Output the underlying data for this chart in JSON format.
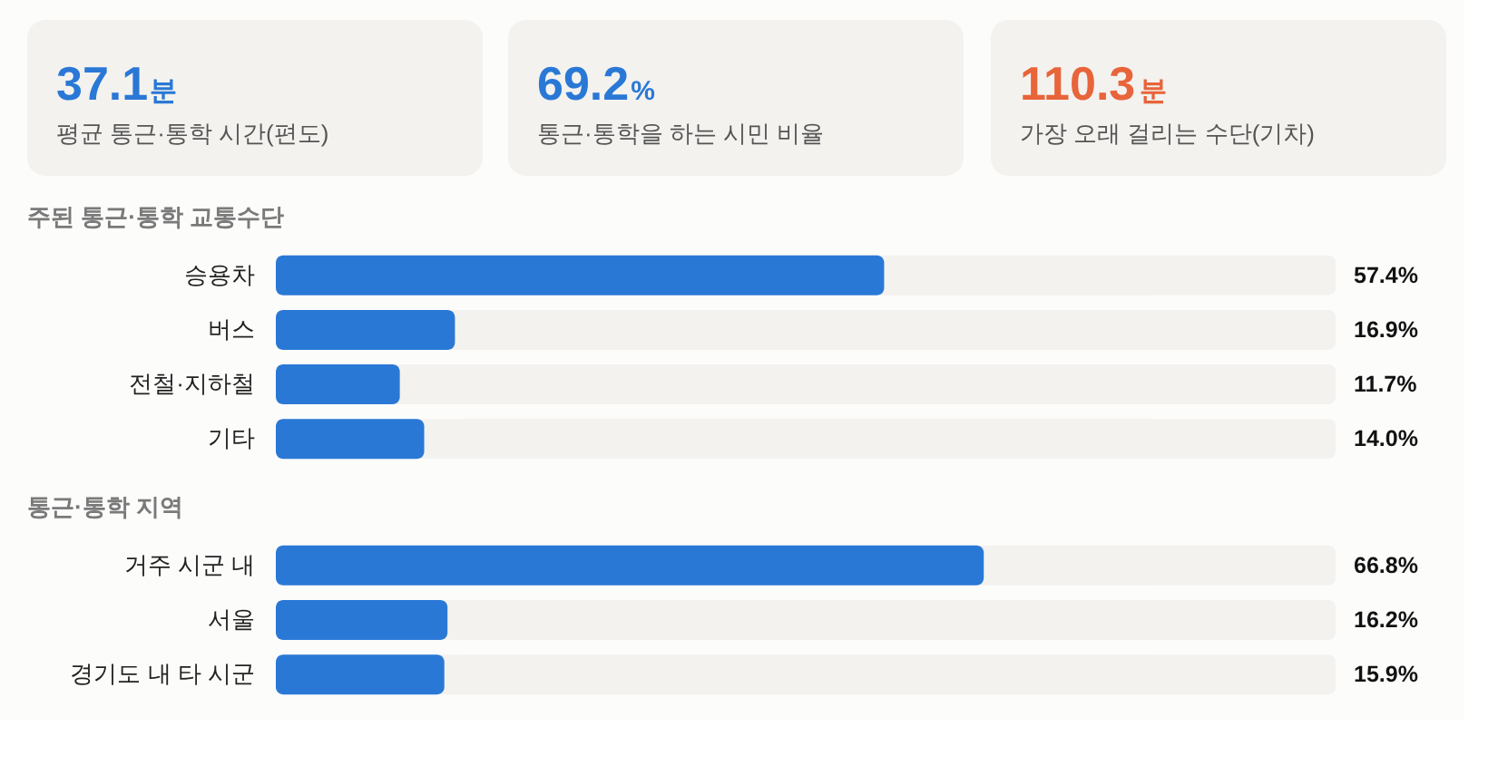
{
  "chart_data": [
    {
      "type": "other",
      "annotations": [
        "37.1분",
        "평균 통근·통학 시간(편도)",
        "69.2%",
        "통근·통학을 하는 시민 비율",
        "110.3분",
        "가장 오래 걸리는 수단(기차)"
      ],
      "colors": [
        "#2a78d6",
        "#2a78d6",
        "#e8643a"
      ]
    },
    {
      "type": "bar",
      "orientation": "horizontal",
      "title": "주된 통근·통학 교통수단",
      "categories": [
        "승용차",
        "버스",
        "전철·지하철",
        "기타"
      ],
      "values": [
        57.4,
        16.9,
        11.7,
        14.0
      ],
      "value_labels": [
        "57.4%",
        "16.9%",
        "11.7%",
        "14.0%"
      ],
      "color": "#2a78d6",
      "xlim": [
        0,
        100
      ],
      "tick_labels": "y",
      "grid": false
    },
    {
      "type": "bar",
      "orientation": "horizontal",
      "title": "통근·통학 지역",
      "categories": [
        "거주 시군 내",
        "서울",
        "경기도 내 타 시군"
      ],
      "values": [
        66.8,
        16.2,
        15.9
      ],
      "value_labels": [
        "66.8%",
        "16.2%",
        "15.9%"
      ],
      "color": "#2a78d6",
      "xlim": [
        0,
        100
      ],
      "tick_labels": "y",
      "grid": false
    }
  ]
}
